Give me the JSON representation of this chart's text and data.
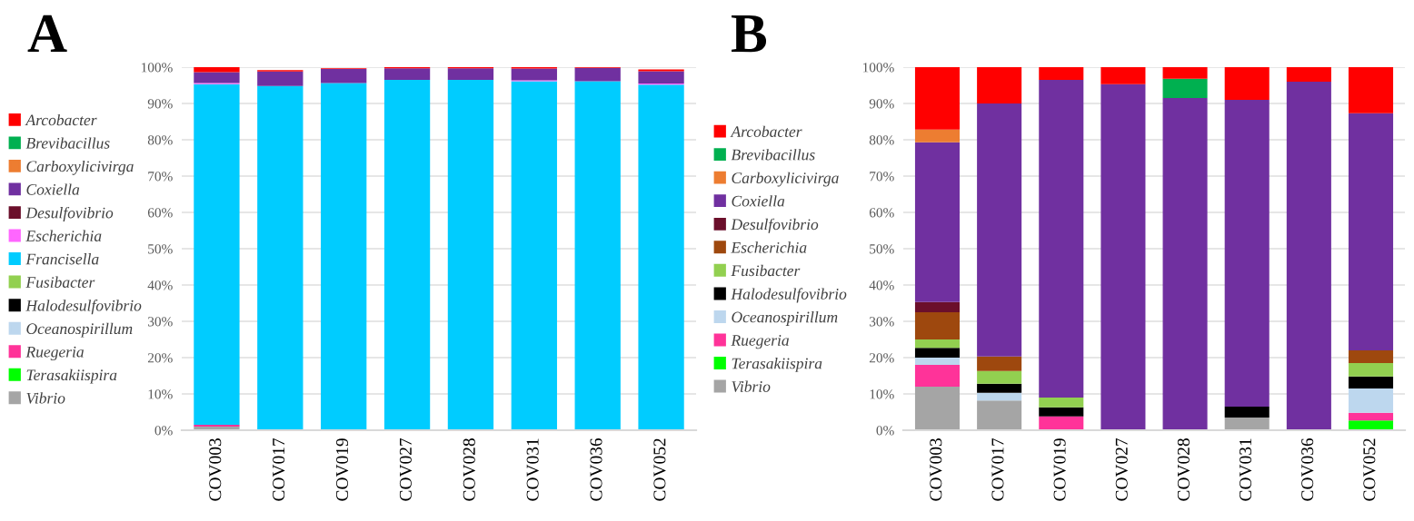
{
  "chart_data": [
    {
      "type": "bar",
      "title": "A",
      "stacked": true,
      "legend": "left",
      "grid": "y",
      "categories": [
        "COV003",
        "COV017",
        "COV019",
        "COV027",
        "COV028",
        "COV031",
        "COV036",
        "COV052"
      ],
      "ylim": [
        0,
        100
      ],
      "yticks": [
        {
          "value": 0,
          "label": "0%"
        },
        {
          "value": 10,
          "label": "10%"
        },
        {
          "value": 20,
          "label": "20%"
        },
        {
          "value": 30,
          "label": "30%"
        },
        {
          "value": 40,
          "label": "40%"
        },
        {
          "value": 50,
          "label": "50%"
        },
        {
          "value": 60,
          "label": "60%"
        },
        {
          "value": 70,
          "label": "70%"
        },
        {
          "value": 80,
          "label": "80%"
        },
        {
          "value": 90,
          "label": "90%"
        },
        {
          "value": 100,
          "label": "100%"
        }
      ],
      "series": [
        {
          "name": "Vibrio",
          "color": "#a5a5a5",
          "values": [
            1.0,
            null,
            null,
            0,
            0,
            0.2,
            0,
            null
          ]
        },
        {
          "name": "Terasakiispira",
          "color": "#00ff00",
          "values": [
            0,
            0,
            0,
            0,
            0,
            0,
            0,
            0
          ]
        },
        {
          "name": "Ruegeria",
          "color": "#ff3399",
          "values": [
            0.5,
            0,
            0,
            0,
            0,
            0,
            0,
            0
          ]
        },
        {
          "name": "Oceanospirillum",
          "color": "#bdd7ee",
          "values": [
            0,
            0,
            0,
            0,
            0,
            0,
            0,
            0
          ]
        },
        {
          "name": "Halodesulfovibrio",
          "color": "#000000",
          "values": [
            0,
            0,
            0,
            0,
            0,
            0,
            0,
            0
          ]
        },
        {
          "name": "Fusibacter",
          "color": "#92d050",
          "values": [
            0,
            0,
            0,
            0,
            0,
            0,
            0,
            0
          ]
        },
        {
          "name": "Francisella",
          "color": "#00ccff",
          "values": [
            93.8,
            94.8,
            95.6,
            96.5,
            96.5,
            95.9,
            96.1,
            95.2
          ]
        },
        {
          "name": "Escherichia",
          "color": "#ff66ff",
          "values": [
            0.3,
            null,
            0,
            0,
            0,
            0.3,
            0,
            0.3
          ]
        },
        {
          "name": "Desulfovibrio",
          "color": "#6b0f2b",
          "values": [
            0,
            0,
            0,
            0,
            0,
            0,
            0,
            0
          ]
        },
        {
          "name": "Coxiella",
          "color": "#7030a0",
          "values": [
            3.0,
            4.0,
            3.9,
            3.2,
            3.2,
            3.2,
            3.7,
            3.4
          ]
        },
        {
          "name": "Carboxylicivirga",
          "color": "#ed7d31",
          "values": [
            0,
            0,
            0,
            0,
            0,
            0,
            0,
            0
          ]
        },
        {
          "name": "Brevibacillus",
          "color": "#00b050",
          "values": [
            0,
            0,
            0,
            0,
            0,
            0,
            0,
            0
          ]
        },
        {
          "name": "Arcobacter",
          "color": "#ff0000",
          "values": [
            1.4,
            0.4,
            0.2,
            0.3,
            0.3,
            0.4,
            0.2,
            0.5
          ]
        }
      ]
    },
    {
      "type": "bar",
      "title": "B",
      "stacked": true,
      "legend": "left",
      "grid": "y",
      "categories": [
        "COV003",
        "COV017",
        "COV019",
        "COV027",
        "COV028",
        "COV031",
        "COV036",
        "COV052"
      ],
      "ylim": [
        0,
        100
      ],
      "yticks": [
        {
          "value": 0,
          "label": "0%"
        },
        {
          "value": 10,
          "label": "10%"
        },
        {
          "value": 20,
          "label": "20%"
        },
        {
          "value": 30,
          "label": "30%"
        },
        {
          "value": 40,
          "label": "40%"
        },
        {
          "value": 50,
          "label": "50%"
        },
        {
          "value": 60,
          "label": "60%"
        },
        {
          "value": 70,
          "label": "70%"
        },
        {
          "value": 80,
          "label": "80%"
        },
        {
          "value": 90,
          "label": "90%"
        },
        {
          "value": 100,
          "label": "100%"
        }
      ],
      "series": [
        {
          "name": "Vibrio",
          "color": "#a5a5a5",
          "values": [
            12.0,
            8.2,
            0,
            0,
            0,
            3.5,
            0,
            0
          ]
        },
        {
          "name": "Terasakiispira",
          "color": "#00ff00",
          "values": [
            0,
            0,
            0,
            0,
            0,
            0,
            0,
            2.7
          ]
        },
        {
          "name": "Ruegeria",
          "color": "#ff3399",
          "values": [
            6.0,
            0,
            3.8,
            0,
            0,
            0,
            0,
            2.1
          ]
        },
        {
          "name": "Oceanospirillum",
          "color": "#bdd7ee",
          "values": [
            2.0,
            2.1,
            0,
            0,
            0,
            0,
            0,
            6.7
          ]
        },
        {
          "name": "Halodesulfovibrio",
          "color": "#000000",
          "values": [
            2.7,
            2.5,
            2.5,
            0,
            0,
            3.0,
            0,
            3.3
          ]
        },
        {
          "name": "Fusibacter",
          "color": "#92d050",
          "values": [
            2.3,
            3.5,
            2.7,
            0,
            0,
            0,
            0,
            3.7
          ]
        },
        {
          "name": "Escherichia",
          "color": "#9e480e",
          "values": [
            7.5,
            4.0,
            0,
            0,
            0,
            0,
            0,
            3.5
          ]
        },
        {
          "name": "Desulfovibrio",
          "color": "#6b0f2b",
          "values": [
            2.8,
            0,
            0,
            0,
            0,
            0,
            0,
            0
          ]
        },
        {
          "name": "Coxiella",
          "color": "#7030a0",
          "values": [
            44.0,
            69.7,
            87.5,
            95.3,
            91.5,
            84.5,
            96.0,
            65.3
          ]
        },
        {
          "name": "Carboxylicivirga",
          "color": "#ed7d31",
          "values": [
            3.5,
            0,
            0,
            0,
            0,
            0,
            0,
            0
          ]
        },
        {
          "name": "Brevibacillus",
          "color": "#00b050",
          "values": [
            0,
            0,
            0,
            0,
            5.3,
            0,
            0,
            0
          ]
        },
        {
          "name": "Arcobacter",
          "color": "#ff0000",
          "values": [
            17.2,
            10.0,
            3.5,
            4.7,
            3.2,
            9.0,
            4.0,
            12.7
          ]
        }
      ]
    }
  ]
}
